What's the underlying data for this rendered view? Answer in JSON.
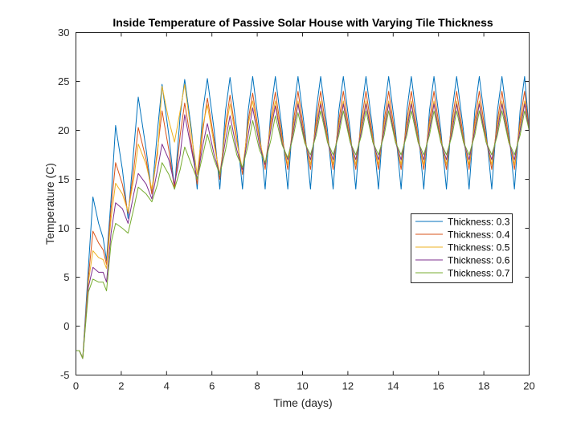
{
  "chart_data": {
    "type": "line",
    "title": "Inside Temperature of Passive Solar House with Varying Tile Thickness",
    "xlabel": "Time (days)",
    "ylabel": "Temperature (C)",
    "xlim": [
      0,
      20
    ],
    "ylim": [
      -5,
      30
    ],
    "xticks": [
      "0",
      "2",
      "4",
      "6",
      "8",
      "10",
      "12",
      "14",
      "16",
      "18",
      "20"
    ],
    "yticks": [
      "-5",
      "0",
      "5",
      "10",
      "15",
      "20",
      "25",
      "30"
    ],
    "grid": false,
    "legend_position": "right-middle",
    "series": [
      {
        "name": "Thickness: 0.3",
        "color": "#0072BD",
        "x": [
          0,
          0.15,
          0.3,
          0.55,
          0.75,
          1.0,
          1.2,
          1.35,
          1.55,
          1.75,
          2.05,
          2.3,
          2.55,
          2.75,
          3.1,
          3.35,
          3.6,
          3.8,
          4.1,
          4.35,
          4.6,
          4.8,
          5.1,
          5.35,
          5.6,
          5.8,
          6.1,
          6.35,
          6.6,
          6.8,
          7.1,
          7.35,
          7.6,
          7.8,
          8.1,
          8.35,
          8.6,
          8.8,
          9.1,
          9.35,
          9.6,
          9.8,
          10.1,
          10.35,
          10.6,
          10.8,
          11.1,
          11.35,
          11.6,
          11.8,
          12.1,
          12.35,
          12.6,
          12.8,
          13.1,
          13.35,
          13.6,
          13.8,
          14.1,
          14.35,
          14.6,
          14.8,
          15.1,
          15.35,
          15.6,
          15.8,
          16.1,
          16.35,
          16.6,
          16.8,
          17.1,
          17.35,
          17.6,
          17.8,
          18.1,
          18.35,
          18.6,
          18.8,
          19.1,
          19.35,
          19.6,
          19.8,
          20.0
        ],
        "y": [
          -2.5,
          -2.5,
          -3.3,
          6.0,
          13.2,
          10.5,
          9.0,
          6.7,
          13.0,
          20.5,
          16.0,
          11.0,
          18.0,
          23.4,
          18.0,
          13.5,
          20.0,
          24.7,
          19.5,
          14.0,
          21.5,
          25.2,
          20.0,
          14.0,
          22.0,
          25.3,
          20.0,
          14.0,
          22.0,
          25.4,
          20.0,
          14.0,
          22.0,
          25.5,
          20.0,
          14.0,
          22.0,
          25.5,
          20.0,
          14.0,
          22.0,
          25.5,
          20.0,
          14.0,
          22.0,
          25.5,
          20.0,
          14.0,
          22.0,
          25.5,
          20.0,
          14.0,
          22.0,
          25.5,
          20.0,
          14.0,
          22.0,
          25.5,
          20.0,
          14.0,
          22.0,
          25.5,
          20.0,
          14.0,
          22.0,
          25.5,
          20.0,
          14.0,
          22.0,
          25.5,
          20.0,
          14.0,
          22.0,
          25.5,
          20.0,
          14.0,
          22.0,
          25.5,
          20.0,
          14.0,
          22.0,
          25.5,
          20.0
        ]
      },
      {
        "name": "Thickness: 0.4",
        "color": "#D95319",
        "x": [
          0,
          0.15,
          0.3,
          0.55,
          0.75,
          1.0,
          1.2,
          1.35,
          1.55,
          1.75,
          2.05,
          2.3,
          2.55,
          2.75,
          3.1,
          3.35,
          3.6,
          3.8,
          4.1,
          4.35,
          4.6,
          4.8,
          5.1,
          5.35,
          5.6,
          5.8,
          6.1,
          6.35,
          6.6,
          6.8,
          7.1,
          7.35,
          7.6,
          7.8,
          8.1,
          8.35,
          8.6,
          8.8,
          9.1,
          9.35,
          9.6,
          9.8,
          10.1,
          10.35,
          10.6,
          10.8,
          11.1,
          11.35,
          11.6,
          11.8,
          12.1,
          12.35,
          12.6,
          12.8,
          13.1,
          13.35,
          13.6,
          13.8,
          14.1,
          14.35,
          14.6,
          14.8,
          15.1,
          15.35,
          15.6,
          15.8,
          16.1,
          16.35,
          16.6,
          16.8,
          17.1,
          17.35,
          17.6,
          17.8,
          18.1,
          18.35,
          18.6,
          18.8,
          19.1,
          19.35,
          19.6,
          19.8,
          20.0
        ],
        "y": [
          -2.5,
          -2.5,
          -3.3,
          5.0,
          9.7,
          8.5,
          7.8,
          6.3,
          12.0,
          16.7,
          14.5,
          11.5,
          16.0,
          20.3,
          17.0,
          13.5,
          18.0,
          22.0,
          18.0,
          14.0,
          19.5,
          22.8,
          18.5,
          14.5,
          20.0,
          23.3,
          19.0,
          15.0,
          20.5,
          23.6,
          19.0,
          15.5,
          21.0,
          23.8,
          19.2,
          16.0,
          21.0,
          23.9,
          19.3,
          16.0,
          21.0,
          24.0,
          19.3,
          16.0,
          21.0,
          24.0,
          19.3,
          16.0,
          21.0,
          24.0,
          19.3,
          16.0,
          21.0,
          24.0,
          19.3,
          16.0,
          21.0,
          24.0,
          19.3,
          16.0,
          21.0,
          24.0,
          19.3,
          16.0,
          21.0,
          24.0,
          19.3,
          16.0,
          21.0,
          24.0,
          19.3,
          16.0,
          21.0,
          24.0,
          19.3,
          16.0,
          21.0,
          24.0,
          19.3,
          16.0,
          21.0,
          24.0,
          20.0
        ]
      },
      {
        "name": "Thickness: 0.5",
        "color": "#EDB120",
        "x": [
          0,
          0.15,
          0.3,
          0.55,
          0.75,
          1.0,
          1.2,
          1.35,
          1.55,
          1.75,
          2.05,
          2.3,
          2.55,
          2.75,
          3.1,
          3.35,
          3.6,
          3.8,
          4.1,
          4.35,
          4.6,
          4.8,
          5.1,
          5.35,
          5.6,
          5.8,
          6.1,
          6.35,
          6.6,
          6.8,
          7.1,
          7.35,
          7.6,
          7.8,
          8.1,
          8.35,
          8.6,
          8.8,
          9.1,
          9.35,
          9.6,
          9.8,
          10.1,
          10.35,
          10.6,
          10.8,
          11.1,
          11.35,
          11.6,
          11.8,
          12.1,
          12.35,
          12.6,
          12.8,
          13.1,
          13.35,
          13.6,
          13.8,
          14.1,
          14.35,
          14.6,
          14.8,
          15.1,
          15.35,
          15.6,
          15.8,
          16.1,
          16.35,
          16.6,
          16.8,
          17.1,
          17.35,
          17.6,
          17.8,
          18.1,
          18.35,
          18.6,
          18.8,
          19.1,
          19.35,
          19.6,
          19.8,
          20.0
        ],
        "y": [
          -2.5,
          -2.5,
          -3.3,
          4.5,
          7.7,
          7.0,
          6.8,
          5.9,
          11.0,
          14.6,
          13.5,
          11.7,
          15.0,
          18.6,
          16.5,
          14.0,
          17.5,
          24.5,
          21.0,
          18.8,
          22.0,
          24.7,
          19.5,
          15.5,
          20.5,
          22.6,
          18.5,
          15.5,
          20.0,
          22.7,
          18.8,
          16.0,
          20.5,
          23.0,
          19.0,
          16.5,
          20.5,
          23.0,
          19.0,
          16.5,
          20.5,
          23.0,
          19.0,
          16.5,
          20.5,
          23.0,
          19.0,
          16.5,
          20.5,
          23.0,
          19.0,
          16.5,
          20.5,
          23.0,
          19.0,
          16.5,
          20.5,
          23.0,
          19.0,
          16.5,
          20.5,
          23.0,
          19.0,
          16.5,
          20.5,
          23.0,
          19.0,
          16.5,
          20.5,
          23.0,
          19.0,
          16.5,
          20.5,
          23.0,
          19.0,
          16.5,
          20.5,
          23.0,
          19.0,
          16.5,
          20.5,
          23.0,
          20.0
        ]
      },
      {
        "name": "Thickness: 0.6",
        "color": "#7E2F8E",
        "x": [
          0,
          0.15,
          0.3,
          0.55,
          0.75,
          1.0,
          1.2,
          1.35,
          1.55,
          1.75,
          2.05,
          2.3,
          2.55,
          2.75,
          3.1,
          3.35,
          3.6,
          3.8,
          4.1,
          4.35,
          4.6,
          4.8,
          5.1,
          5.35,
          5.6,
          5.8,
          6.1,
          6.35,
          6.6,
          6.8,
          7.1,
          7.35,
          7.6,
          7.8,
          8.1,
          8.35,
          8.6,
          8.8,
          9.1,
          9.35,
          9.6,
          9.8,
          10.1,
          10.35,
          10.6,
          10.8,
          11.1,
          11.35,
          11.6,
          11.8,
          12.1,
          12.35,
          12.6,
          12.8,
          13.1,
          13.35,
          13.6,
          13.8,
          14.1,
          14.35,
          14.6,
          14.8,
          15.1,
          15.35,
          15.6,
          15.8,
          16.1,
          16.35,
          16.6,
          16.8,
          17.1,
          17.35,
          17.6,
          17.8,
          18.1,
          18.35,
          18.6,
          18.8,
          19.1,
          19.35,
          19.6,
          19.8,
          20.0
        ],
        "y": [
          -2.5,
          -2.5,
          -3.3,
          4.0,
          6.0,
          5.5,
          5.5,
          4.5,
          9.5,
          12.6,
          12.0,
          10.5,
          13.5,
          15.6,
          14.5,
          13.0,
          16.0,
          18.6,
          17.0,
          14.5,
          17.5,
          21.6,
          18.0,
          15.0,
          18.5,
          20.7,
          17.5,
          15.5,
          19.0,
          21.5,
          18.0,
          16.0,
          19.5,
          22.3,
          18.5,
          16.5,
          20.0,
          22.5,
          18.7,
          17.0,
          20.0,
          22.7,
          18.8,
          17.0,
          20.0,
          22.7,
          18.8,
          17.0,
          20.0,
          22.7,
          18.8,
          17.0,
          20.0,
          22.7,
          18.8,
          17.0,
          20.0,
          22.7,
          18.8,
          17.0,
          20.0,
          22.7,
          18.8,
          17.0,
          20.0,
          22.7,
          18.8,
          17.0,
          20.0,
          22.7,
          18.8,
          17.0,
          20.0,
          22.7,
          18.8,
          17.0,
          20.0,
          22.7,
          18.8,
          17.0,
          20.0,
          22.7,
          20.0
        ]
      },
      {
        "name": "Thickness: 0.7",
        "color": "#77AC30",
        "x": [
          0,
          0.15,
          0.3,
          0.55,
          0.75,
          1.0,
          1.2,
          1.35,
          1.55,
          1.75,
          2.05,
          2.3,
          2.55,
          2.75,
          3.1,
          3.35,
          3.6,
          3.8,
          4.1,
          4.35,
          4.6,
          4.8,
          5.1,
          5.35,
          5.6,
          5.8,
          6.1,
          6.35,
          6.6,
          6.8,
          7.1,
          7.35,
          7.6,
          7.8,
          8.1,
          8.35,
          8.6,
          8.8,
          9.1,
          9.35,
          9.6,
          9.8,
          10.1,
          10.35,
          10.6,
          10.8,
          11.1,
          11.35,
          11.6,
          11.8,
          12.1,
          12.35,
          12.6,
          12.8,
          13.1,
          13.35,
          13.6,
          13.8,
          14.1,
          14.35,
          14.6,
          14.8,
          15.1,
          15.35,
          15.6,
          15.8,
          16.1,
          16.35,
          16.6,
          16.8,
          17.1,
          17.35,
          17.6,
          17.8,
          18.1,
          18.35,
          18.6,
          18.8,
          19.1,
          19.35,
          19.6,
          19.8,
          20.0
        ],
        "y": [
          -2.5,
          -2.5,
          -3.3,
          3.5,
          4.8,
          4.5,
          4.5,
          3.6,
          8.5,
          10.5,
          10.0,
          9.5,
          12.0,
          14.2,
          13.5,
          12.7,
          14.5,
          16.7,
          15.5,
          14.0,
          16.0,
          18.3,
          16.5,
          15.0,
          17.5,
          19.6,
          17.0,
          15.5,
          18.0,
          20.5,
          17.5,
          16.2,
          18.5,
          21.0,
          18.0,
          16.7,
          19.0,
          21.5,
          18.5,
          17.2,
          19.5,
          21.8,
          18.7,
          17.5,
          19.5,
          22.0,
          18.8,
          17.5,
          19.5,
          22.0,
          18.8,
          17.5,
          19.5,
          22.0,
          18.8,
          17.5,
          19.5,
          22.0,
          18.8,
          17.5,
          19.5,
          22.0,
          18.8,
          17.5,
          19.5,
          22.0,
          18.8,
          17.5,
          19.5,
          22.0,
          18.8,
          17.5,
          19.5,
          22.0,
          18.8,
          17.5,
          19.5,
          22.0,
          18.8,
          17.5,
          19.5,
          22.0,
          20.0
        ]
      }
    ]
  }
}
